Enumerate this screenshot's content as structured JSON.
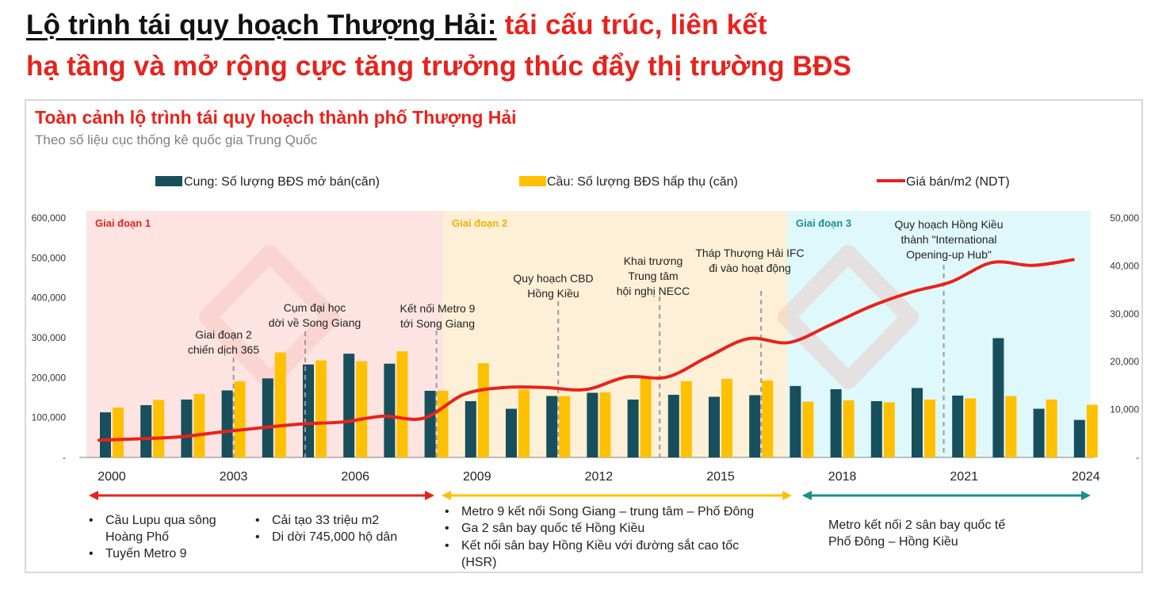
{
  "headline": {
    "part1": "Lộ trình tái quy hoạch Thượng Hải:",
    "part2": " tái cấu trúc, liên kết",
    "line2": "hạ tầng và mở rộng cực tăng trưởng thúc đẩy thị trường BĐS"
  },
  "chart_data": {
    "type": "bar",
    "title": "Toàn cảnh lộ trình tái quy hoạch thành phố Thượng Hải",
    "subtitle": "Theo số liệu cục thống kê quốc gia Trung Quốc",
    "x": [
      2000,
      2001,
      2002,
      2003,
      2004,
      2005,
      2006,
      2007,
      2008,
      2009,
      2010,
      2011,
      2012,
      2013,
      2014,
      2015,
      2016,
      2017,
      2018,
      2019,
      2020,
      2021,
      2022,
      2023,
      2024
    ],
    "x_tick_labels": [
      "2000",
      "2003",
      "2006",
      "2009",
      "2012",
      "2015",
      "2018",
      "2021",
      "2024"
    ],
    "series": [
      {
        "name": "Cung: Số lượng BĐS mở bán(căn)",
        "type": "bar",
        "axis": "left",
        "color": "#174f5c",
        "values": [
          113000,
          131000,
          145000,
          168000,
          198000,
          233000,
          260000,
          235000,
          167000,
          141000,
          122000,
          154000,
          162000,
          145000,
          157000,
          152000,
          156000,
          179000,
          171000,
          141000,
          174000,
          155000,
          299000,
          122000,
          94000
        ]
      },
      {
        "name": "Cầu: Số lượng BĐS hấp thụ (căn)",
        "type": "bar",
        "axis": "left",
        "color": "#ffc000",
        "values": [
          125000,
          144000,
          159000,
          191000,
          263000,
          243000,
          241000,
          266000,
          167000,
          236000,
          170000,
          154000,
          163000,
          203000,
          191000,
          197000,
          193000,
          140000,
          143000,
          138000,
          145000,
          148000,
          154000,
          145000,
          132000
        ]
      },
      {
        "name": "Giá bán/m2 (NDT)",
        "type": "line",
        "axis": "right",
        "color": "#e8221c",
        "values": [
          3600,
          3900,
          4300,
          5300,
          6200,
          7000,
          7400,
          8600,
          8200,
          13200,
          14600,
          14600,
          14200,
          16800,
          16800,
          21000,
          24800,
          24000,
          27600,
          31500,
          34500,
          36700,
          40700,
          40100,
          41300
        ]
      }
    ],
    "y_left": {
      "ticks": [
        "-",
        "100,000",
        "200,000",
        "300,000",
        "400,000",
        "500,000",
        "600,000"
      ],
      "range": [
        0,
        600000
      ]
    },
    "y_right": {
      "ticks": [
        "-",
        "10,000",
        "20,000",
        "30,000",
        "40,000",
        "50,000"
      ],
      "range": [
        0,
        50000
      ]
    },
    "phases": [
      {
        "label": "Giai đoạn 1",
        "from": 2000,
        "to": 2008,
        "color": "#fde4e2",
        "label_color": "#e8221c"
      },
      {
        "label": "Giai đoạn 2",
        "from": 2008,
        "to": 2016.5,
        "color": "#fdf0d6",
        "label_color": "#f2b100"
      },
      {
        "label": "Giai đoạn 3",
        "from": 2016.5,
        "to": 2024,
        "color": "#dff8fb",
        "label_color": "#188f8f"
      }
    ],
    "annotations": [
      {
        "lines": [
          "Giai đoạn 2",
          "chiến dịch 365"
        ],
        "x": 2003
      },
      {
        "lines": [
          "Cụm đại học",
          "dời về Song Giang"
        ],
        "x": 2005
      },
      {
        "lines": [
          "Kết nối Metro 9",
          "tới Song Giang"
        ],
        "x": 2008
      },
      {
        "lines": [
          "Quy hoạch CBD",
          "Hồng Kiều"
        ],
        "x": 2011
      },
      {
        "lines": [
          "Khai trương",
          "Trung tâm",
          "hội nghị NECC"
        ],
        "x": 2013.5
      },
      {
        "lines": [
          "Tháp Thượng Hải IFC",
          "đi vào hoạt động"
        ],
        "x": 2016
      },
      {
        "lines": [
          "Quy hoạch Hồng Kiều",
          "thành \"International",
          "Opening-up Hub\""
        ],
        "x": 2020.5
      }
    ],
    "legend_position": "top-center"
  },
  "phase_notes": {
    "phase1_col1": [
      "Cầu Lupu qua sông Hoàng Phố",
      "Tuyến Metro 9"
    ],
    "phase1_col2": [
      "Cải tạo 33 triệu m2",
      "Di dời 745,000 hộ dân"
    ],
    "phase2": [
      "Metro 9 kết nối Song Giang – trung tâm – Phố Đông",
      "Ga 2 sân bay quốc tế Hồng Kiều",
      "Kết nối sân bay Hồng Kiều với đường sắt cao tốc (HSR)"
    ],
    "phase3": "Metro kết nối 2 sân bay quốc tế Phố Đông – Hồng Kiều",
    "arrow_colors": [
      "#e8221c",
      "#ffc000",
      "#188f8f"
    ]
  }
}
